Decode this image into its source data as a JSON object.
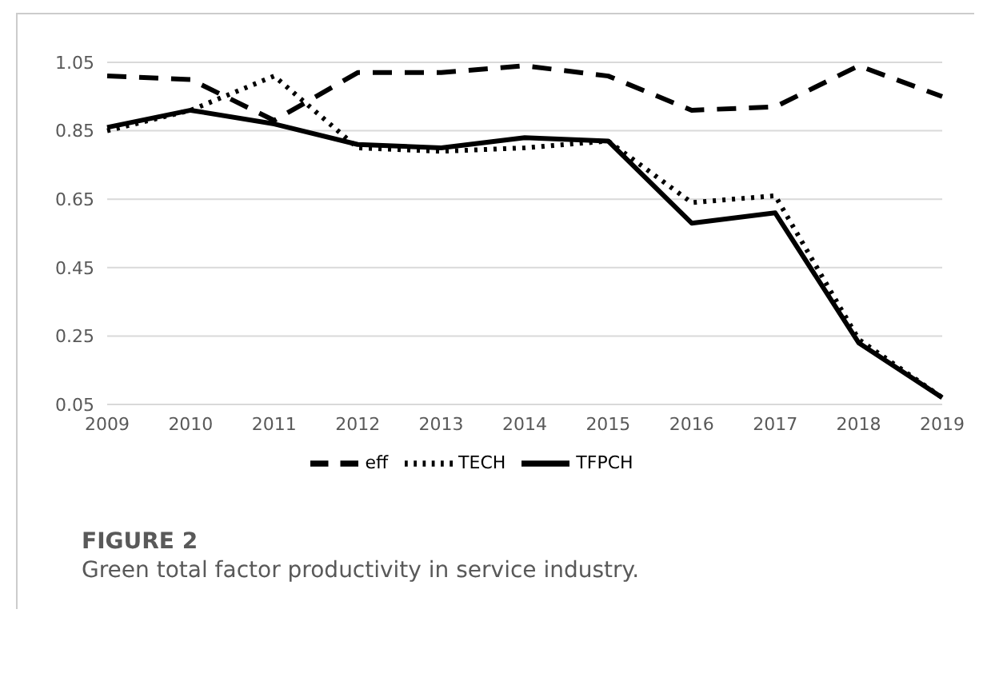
{
  "chart_data": {
    "type": "line",
    "title": "FIGURE 2",
    "subtitle": "Green total factor productivity in service industry.",
    "categories": [
      "2009",
      "2010",
      "2011",
      "2012",
      "2013",
      "2014",
      "2015",
      "2016",
      "2017",
      "2018",
      "2019"
    ],
    "series": [
      {
        "name": "eff",
        "color": "#000000",
        "line_style": "dashed",
        "values": [
          1.01,
          1.0,
          0.88,
          1.02,
          1.02,
          1.04,
          1.01,
          0.91,
          0.92,
          1.04,
          0.95
        ]
      },
      {
        "name": "TECH",
        "color": "#000000",
        "line_style": "dotted",
        "values": [
          0.85,
          0.91,
          1.01,
          0.8,
          0.79,
          0.8,
          0.82,
          0.64,
          0.66,
          0.24,
          0.07
        ]
      },
      {
        "name": "TFPCH",
        "color": "#000000",
        "line_style": "solid",
        "values": [
          0.86,
          0.91,
          0.87,
          0.81,
          0.8,
          0.83,
          0.82,
          0.58,
          0.61,
          0.23,
          0.07
        ]
      }
    ],
    "ylim": [
      0.05,
      1.05
    ],
    "yticks": [
      0.05,
      0.25,
      0.45,
      0.65,
      0.85,
      1.05
    ],
    "grid": "y",
    "legend": "bottom",
    "marker": "none"
  }
}
